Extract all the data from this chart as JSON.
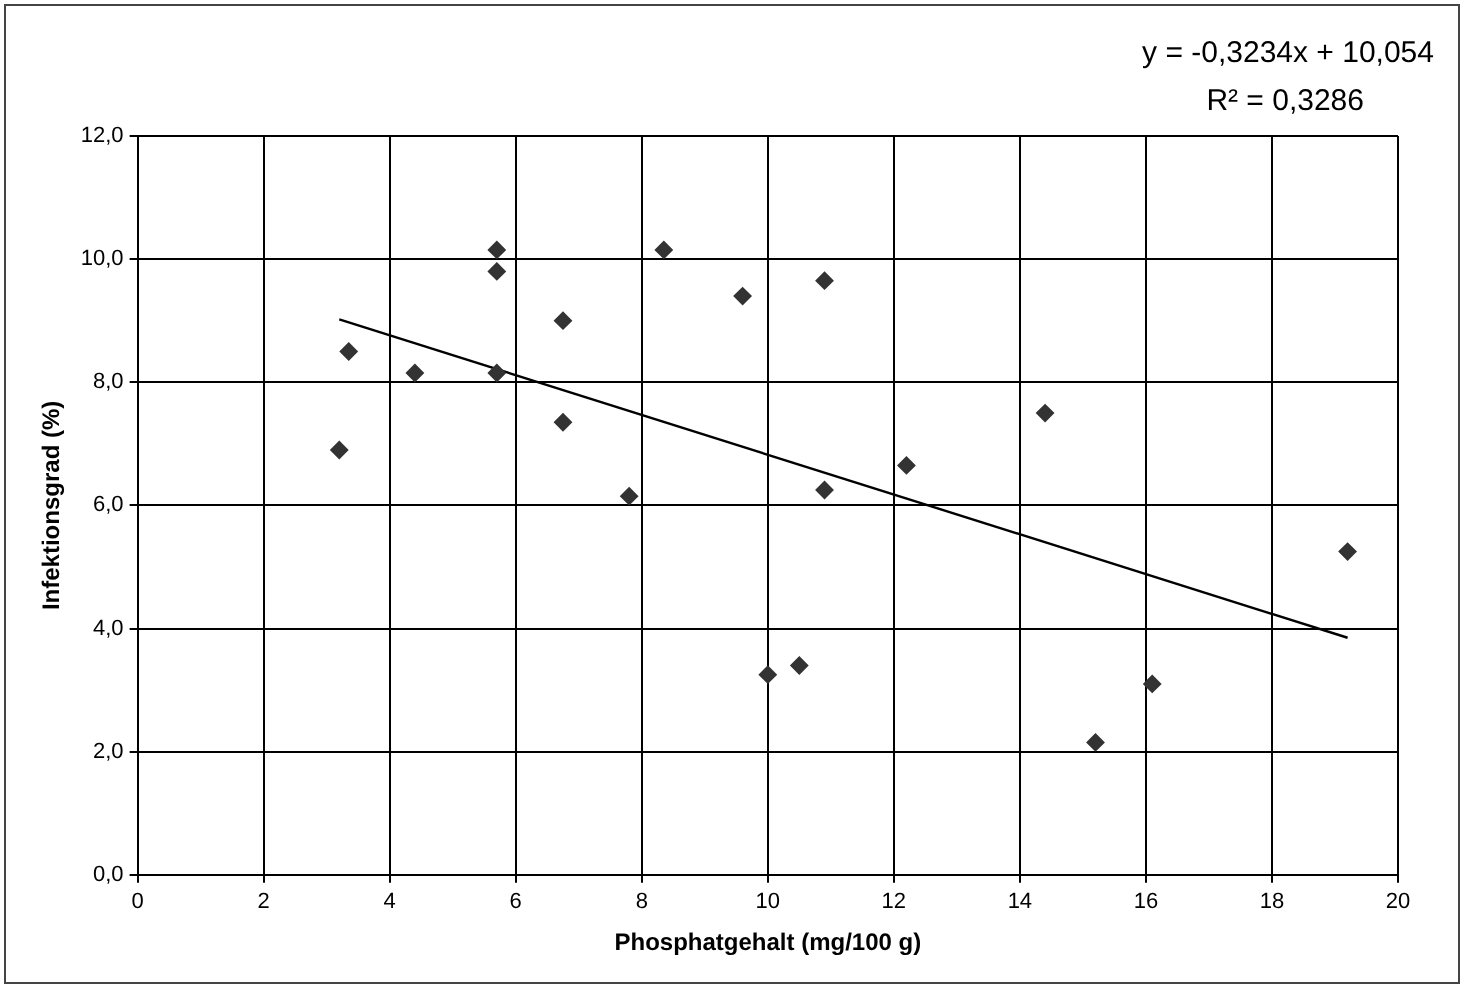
{
  "chart_data": {
    "type": "scatter",
    "xlabel": "Phosphatgehalt (mg/100 g)",
    "ylabel": "Infektionsgrad (%)",
    "annotations": [
      "y = -0,3234x + 10,054",
      "R² = 0,3286"
    ],
    "series": [
      {
        "color": "#333333",
        "marker": "diamond",
        "x": [
          3.2,
          3.35,
          4.4,
          5.7,
          5.7,
          5.7,
          6.75,
          6.75,
          7.8,
          8.35,
          9.6,
          10.9,
          10.0,
          10.5,
          10.9,
          12.2,
          14.4,
          15.2,
          16.1,
          19.2
        ],
        "values": [
          6.9,
          8.5,
          8.15,
          10.15,
          9.8,
          8.15,
          9.0,
          7.35,
          6.15,
          10.15,
          9.4,
          9.65,
          3.25,
          3.4,
          6.25,
          6.65,
          7.5,
          2.15,
          3.1,
          5.25
        ]
      },
      {
        "type": "line",
        "color": "#000000",
        "marker": "none",
        "x": [
          3.2,
          19.2
        ],
        "values": [
          9.02,
          3.85
        ]
      }
    ],
    "xlim": [
      0,
      20
    ],
    "xticks": [
      0,
      2,
      4,
      6,
      8,
      10,
      12,
      14,
      16,
      18,
      20
    ],
    "ylim": [
      0,
      12
    ],
    "yticks": [
      {
        "value": 0,
        "label": "0,0"
      },
      {
        "value": 2,
        "label": "2,0"
      },
      {
        "value": 4,
        "label": "4,0"
      },
      {
        "value": 6,
        "label": "6,0"
      },
      {
        "value": 8,
        "label": "8,0"
      },
      {
        "value": 10,
        "label": "10,0"
      },
      {
        "value": 12,
        "label": "12,0"
      }
    ],
    "grid": true,
    "legend": false
  }
}
